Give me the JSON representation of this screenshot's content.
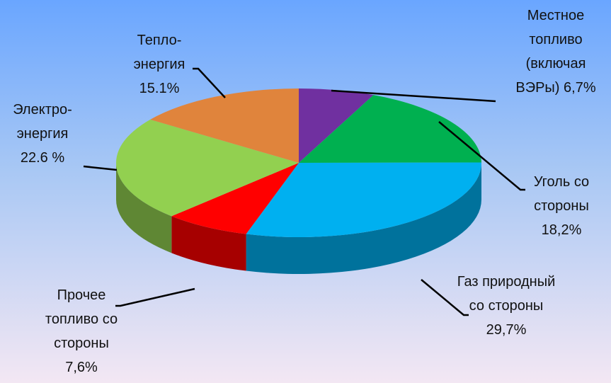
{
  "chart_data": {
    "type": "pie",
    "categories": [
      "Местное топливо (включая ВЭРы)",
      "Уголь со стороны",
      "Газ природный со стороны",
      "Прочее топливо со стороны",
      "Электро-энергия",
      "Тепло-энергия"
    ],
    "values": [
      6.7,
      18.2,
      29.7,
      7.6,
      22.6,
      15.1
    ],
    "value_labels": [
      "6,7%",
      "18,2%",
      "29,7%",
      "7,6%",
      "22.6 %",
      "15.1%"
    ],
    "colors": [
      "#7030a0",
      "#00b050",
      "#00b0f0",
      "#ff0000",
      "#92d050",
      "#e0843c"
    ]
  }
}
